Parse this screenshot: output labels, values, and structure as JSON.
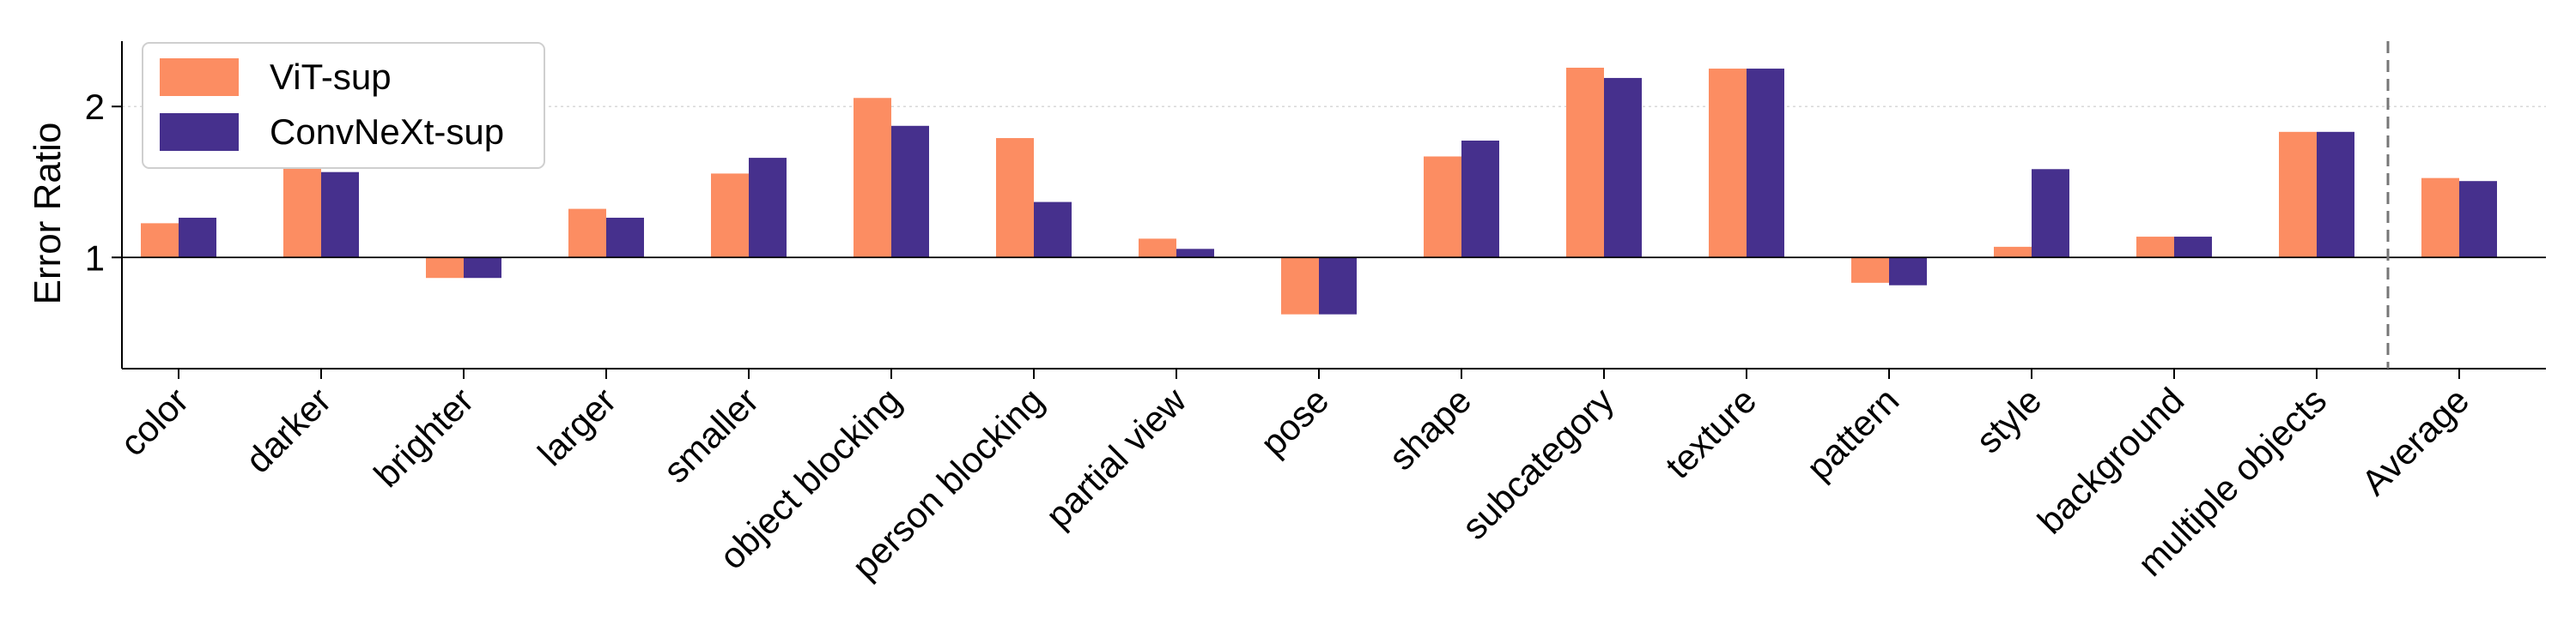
{
  "chart_data": {
    "type": "bar",
    "ylabel": "Error Ratio",
    "xlabel": "",
    "title": "",
    "y_scale": "log",
    "ylim": [
      0.6,
      2.7
    ],
    "yticks": [
      1,
      2
    ],
    "ytick_labels": [
      "1",
      "2"
    ],
    "reference_line_y": 1,
    "grid": "horizontal dotted at y=2",
    "separator_before_category": "Average",
    "legend": {
      "position": "top-left"
    },
    "categories": [
      "color",
      "darker",
      "brighter",
      "larger",
      "smaller",
      "object blocking",
      "person blocking",
      "partial view",
      "pose",
      "shape",
      "subcategory",
      "texture",
      "pattern",
      "style",
      "background",
      "multiple objects",
      "Average"
    ],
    "series": [
      {
        "name": "ViT-sup",
        "color": "#fc8d62",
        "values": [
          1.17,
          1.65,
          0.91,
          1.25,
          1.47,
          2.08,
          1.73,
          1.09,
          0.77,
          1.59,
          2.39,
          2.38,
          0.89,
          1.05,
          1.1,
          1.78,
          1.44
        ]
      },
      {
        "name": "ConvNeXt-sup",
        "color": "#46308d",
        "values": [
          1.2,
          1.48,
          0.91,
          1.2,
          1.58,
          1.83,
          1.29,
          1.04,
          0.77,
          1.71,
          2.28,
          2.38,
          0.88,
          1.5,
          1.1,
          1.78,
          1.42
        ]
      }
    ]
  }
}
